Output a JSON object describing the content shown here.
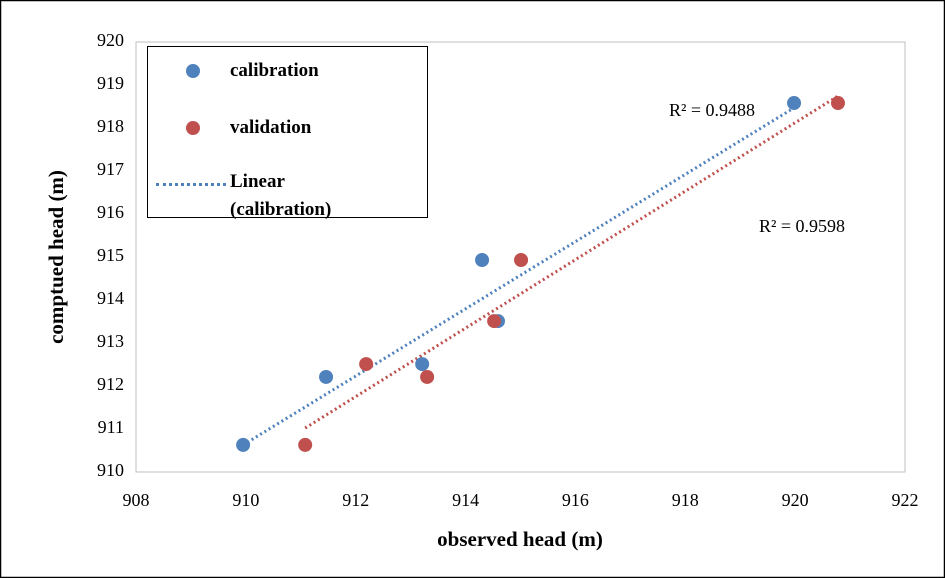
{
  "chart_data": {
    "type": "scatter",
    "x_label": "observed head (m)",
    "y_label": "comptued head (m)",
    "xlim": [
      908,
      922
    ],
    "xticks": [
      908,
      910,
      912,
      914,
      916,
      918,
      920,
      922
    ],
    "ylim": [
      910,
      920
    ],
    "yticks": [
      910,
      911,
      912,
      913,
      914,
      915,
      916,
      917,
      918,
      919,
      920
    ],
    "grid": false,
    "legend": "upper left",
    "series": [
      {
        "name": "calibration",
        "color": "#4f81bd",
        "x": [
          909.95,
          911.46,
          913.21,
          914.3,
          914.59,
          919.98
        ],
        "values": [
          910.63,
          912.21,
          912.51,
          914.93,
          913.51,
          918.58
        ],
        "trendline": "Linear (calibration)",
        "r2_label": "R² = 0.9488"
      },
      {
        "name": "validation",
        "color": "#c0504d",
        "x": [
          911.08,
          912.19,
          913.3,
          914.52,
          915.01,
          920.78
        ],
        "values": [
          910.63,
          912.51,
          912.21,
          913.51,
          914.93,
          918.58
        ],
        "r2_label": "R² = 0.9598"
      }
    ]
  }
}
